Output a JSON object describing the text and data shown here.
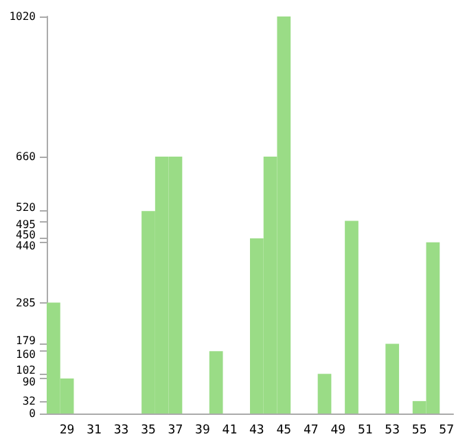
{
  "chart_data": {
    "type": "bar",
    "categories": [
      null,
      "29",
      null,
      "31",
      null,
      "33",
      null,
      "35",
      null,
      "37",
      null,
      "39",
      null,
      "41",
      null,
      "43",
      null,
      "45",
      null,
      "47",
      null,
      "49",
      null,
      "51",
      null,
      "53",
      null,
      "55",
      null,
      "57"
    ],
    "values": [
      285,
      90,
      0,
      0,
      0,
      0,
      0,
      520,
      660,
      660,
      0,
      0,
      160,
      0,
      0,
      450,
      660,
      1020,
      0,
      0,
      102,
      0,
      495,
      0,
      0,
      179,
      0,
      32,
      440,
      0
    ],
    "color": "#9adc86",
    "ylim": [
      0,
      1020
    ],
    "yticks": [
      0,
      32,
      90,
      102,
      160,
      179,
      285,
      440,
      450,
      495,
      520,
      660,
      1020
    ],
    "grid": false
  }
}
